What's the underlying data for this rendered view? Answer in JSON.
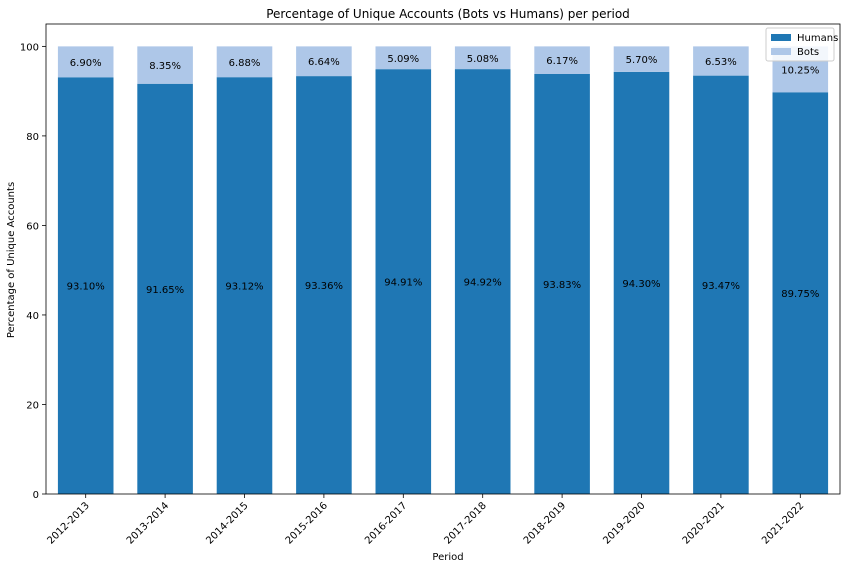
{
  "chart_data": {
    "type": "bar",
    "stacked": true,
    "title": "Percentage of Unique Accounts (Bots vs Humans) per period",
    "xlabel": "Period",
    "ylabel": "Percentage of Unique Accounts",
    "ylim": [
      0,
      105
    ],
    "yticks": [
      "0",
      "20",
      "40",
      "60",
      "80",
      "100"
    ],
    "grid": false,
    "legend_position": "top-right",
    "categories": [
      "2012-2013",
      "2013-2014",
      "2014-2015",
      "2015-2016",
      "2016-2017",
      "2017-2018",
      "2018-2019",
      "2019-2020",
      "2020-2021",
      "2021-2022"
    ],
    "series": [
      {
        "name": "Humans",
        "color": "#1f77b4",
        "values": [
          93.1,
          91.65,
          93.12,
          93.36,
          94.91,
          94.92,
          93.83,
          94.3,
          93.47,
          89.75
        ],
        "labels": [
          "93.10%",
          "91.65%",
          "93.12%",
          "93.36%",
          "94.91%",
          "94.92%",
          "93.83%",
          "94.30%",
          "93.47%",
          "89.75%"
        ]
      },
      {
        "name": "Bots",
        "color": "#aec7e8",
        "values": [
          6.9,
          8.35,
          6.88,
          6.64,
          5.09,
          5.08,
          6.17,
          5.7,
          6.53,
          10.25
        ],
        "labels": [
          "6.90%",
          "8.35%",
          "6.88%",
          "6.64%",
          "5.09%",
          "5.08%",
          "6.17%",
          "5.70%",
          "6.53%",
          "10.25%"
        ]
      }
    ]
  }
}
